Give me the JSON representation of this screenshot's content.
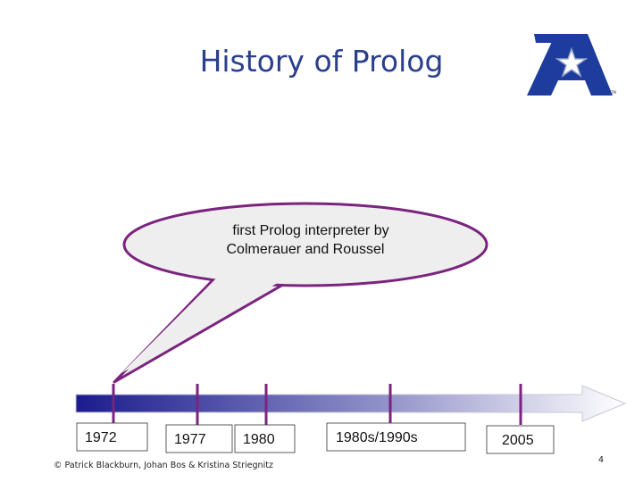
{
  "header": {
    "title": "History of Prolog"
  },
  "callout": {
    "lines": [
      "first Prolog interpreter by",
      "Colmerauer and Roussel"
    ]
  },
  "timeline": {
    "labels": [
      "1972",
      "1977",
      "1980",
      "1980s/1990s",
      "2005"
    ]
  },
  "footer": {
    "credit": "© Patrick Blackburn, Johan Bos & Kristina Striegnitz",
    "page": "4"
  }
}
